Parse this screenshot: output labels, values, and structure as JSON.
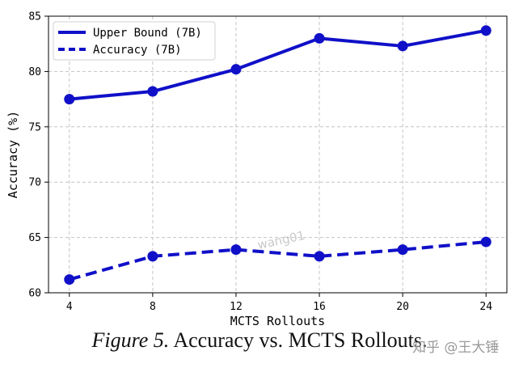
{
  "chart_data": {
    "type": "line",
    "title": "",
    "xlabel": "MCTS Rollouts",
    "ylabel": "Accuracy (%)",
    "x": [
      4,
      8,
      12,
      16,
      20,
      24
    ],
    "xticks": [
      "4",
      "8",
      "12",
      "16",
      "20",
      "24"
    ],
    "yticks": [
      "60",
      "65",
      "70",
      "75",
      "80",
      "85"
    ],
    "ylim": [
      60,
      85
    ],
    "grid": true,
    "legend_position": "top-left",
    "series": [
      {
        "name": "Upper Bound (7B)",
        "style": "solid",
        "values": [
          77.5,
          78.2,
          80.2,
          83.0,
          82.3,
          83.7
        ]
      },
      {
        "name": "Accuracy (7B)",
        "style": "dashed",
        "values": [
          61.2,
          63.3,
          63.9,
          63.3,
          63.9,
          64.6
        ]
      }
    ],
    "colors": {
      "line": "#1010c8",
      "grid": "#c4c4c4",
      "axis": "#000000"
    }
  },
  "caption": {
    "figure_label": "Figure 5.",
    "text": "Accuracy vs. MCTS Rollouts."
  },
  "watermark": {
    "platform": "知乎 @王大锤",
    "overlay": "wang01"
  }
}
